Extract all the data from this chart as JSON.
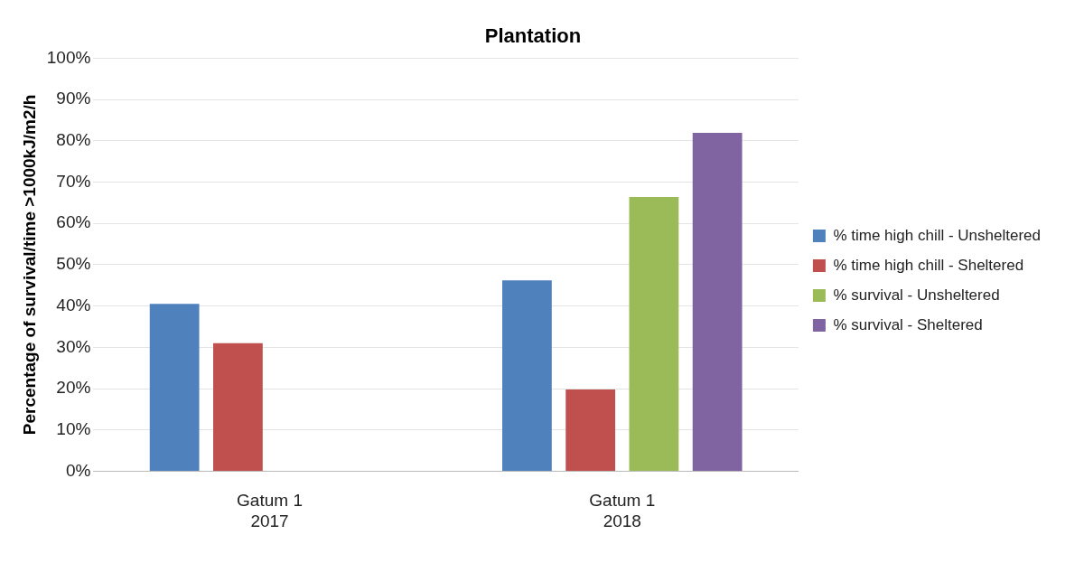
{
  "chart_data": {
    "type": "bar",
    "title": "Plantation",
    "ylabel": "Percentage of survival/time >1000kJ/m2/h",
    "categories": [
      "Gatum 1\n2017",
      "Gatum 1\n2018"
    ],
    "series": [
      {
        "name": "% time high chill - Unsheltered",
        "color": "#4f81bd",
        "values": [
          40.5,
          46.2
        ]
      },
      {
        "name": "% time high chill - Sheltered",
        "color": "#c0504d",
        "values": [
          31,
          19.8
        ]
      },
      {
        "name": "% survival - Unsheltered",
        "color": "#9bbb59",
        "values": [
          null,
          66.4
        ]
      },
      {
        "name": "% survival - Sheltered",
        "color": "#8064a2",
        "values": [
          null,
          81.9
        ]
      }
    ],
    "ylim": [
      0,
      100
    ],
    "yticks": [
      {
        "value": 0,
        "label": "0%"
      },
      {
        "value": 10,
        "label": "10%"
      },
      {
        "value": 20,
        "label": "20%"
      },
      {
        "value": 30,
        "label": "30%"
      },
      {
        "value": 40,
        "label": "40%"
      },
      {
        "value": 50,
        "label": "50%"
      },
      {
        "value": 60,
        "label": "60%"
      },
      {
        "value": 70,
        "label": "70%"
      },
      {
        "value": 80,
        "label": "80%"
      },
      {
        "value": 90,
        "label": "90%"
      },
      {
        "value": 100,
        "label": "100%"
      }
    ],
    "grid": "y",
    "legend": "right"
  }
}
